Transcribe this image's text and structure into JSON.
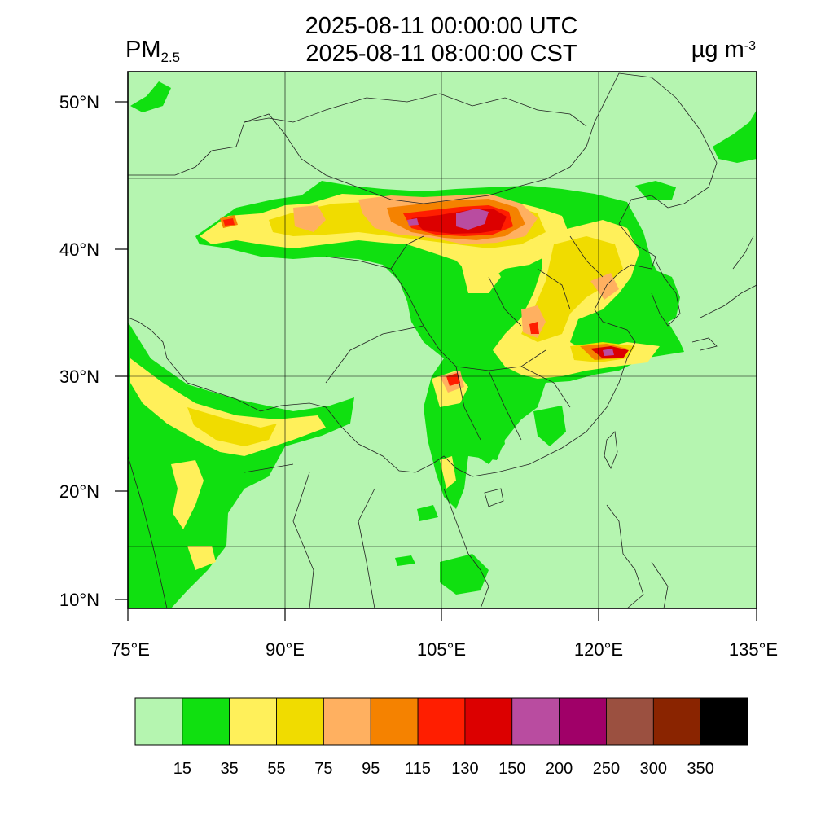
{
  "header": {
    "utc_time": "2025-08-11 00:00:00 UTC",
    "local_time": "2025-08-11 08:00:00 CST",
    "variable_main": "PM",
    "variable_sub": "2.5",
    "units_main": "µg m",
    "units_sup": "-3"
  },
  "map": {
    "lon_range": [
      75,
      135
    ],
    "lat_range": [
      9,
      52
    ],
    "background_color": "#b5f5b0",
    "lat_ticks": [
      {
        "value": 50,
        "label": "50°N"
      },
      {
        "value": 40,
        "label": "40°N"
      },
      {
        "value": 30,
        "label": "30°N"
      },
      {
        "value": 20,
        "label": "20°N"
      },
      {
        "value": 10,
        "label": "10°N"
      }
    ],
    "lon_ticks": [
      {
        "value": 75,
        "label": "75°E"
      },
      {
        "value": 90,
        "label": "90°E"
      },
      {
        "value": 105,
        "label": "105°E"
      },
      {
        "value": 120,
        "label": "120°E"
      },
      {
        "value": 135,
        "label": "135°E"
      }
    ],
    "grid_lats": [
      15,
      30,
      45
    ],
    "grid_lons": [
      90,
      105,
      120
    ]
  },
  "colorbar": {
    "colors": [
      "#b5f5b0",
      "#10e010",
      "#fff05a",
      "#f0dc00",
      "#ffb060",
      "#f58200",
      "#ff1e00",
      "#dc0000",
      "#b94ca0",
      "#a00068",
      "#9b5040",
      "#8a2400",
      "#000000"
    ],
    "labels": [
      "15",
      "35",
      "55",
      "75",
      "95",
      "115",
      "130",
      "150",
      "200",
      "250",
      "300",
      "350"
    ]
  }
}
